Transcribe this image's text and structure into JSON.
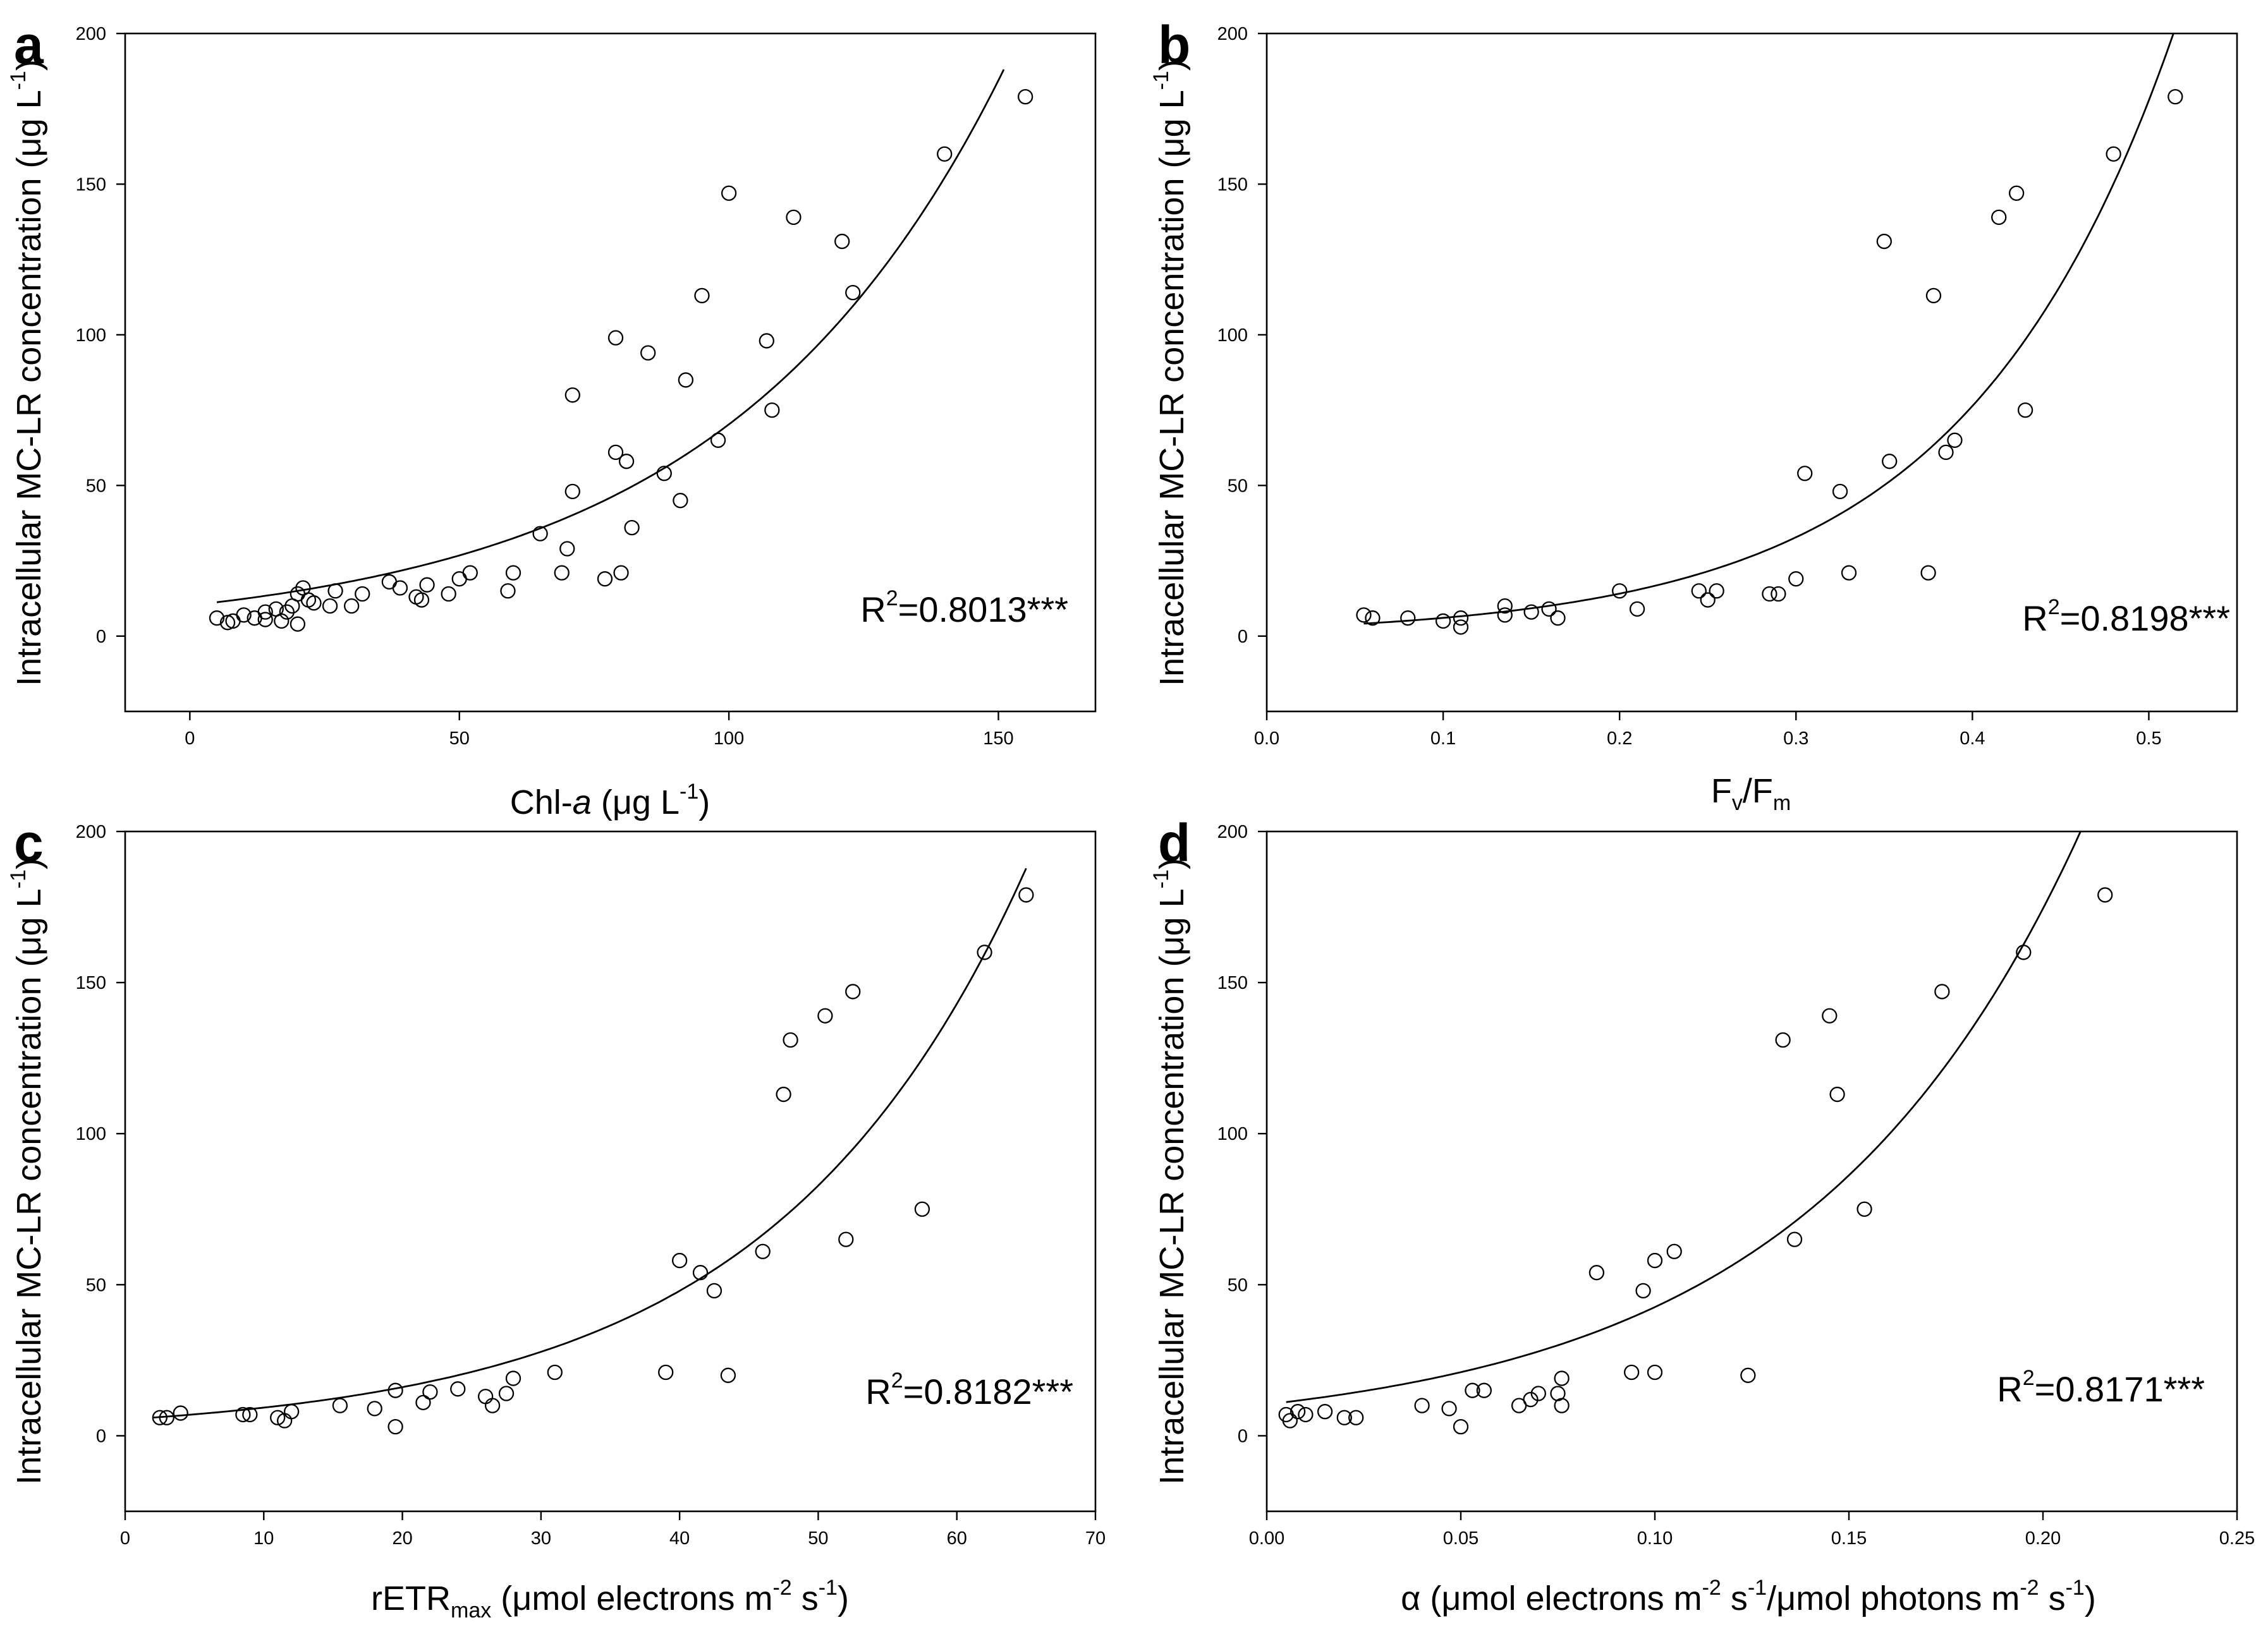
{
  "figure": {
    "ylabel": {
      "main": "Intracellular MC-LR concentration (μg L",
      "sup": "-1",
      "end": ")"
    }
  },
  "chart_data": [
    {
      "panel": "a",
      "type": "scatter",
      "xlabel": {
        "parts": [
          {
            "t": "Chl-",
            "s": "normal"
          },
          {
            "t": "a",
            "s": "italic"
          },
          {
            "t": " (μg L",
            "s": "normal"
          },
          {
            "t": "-1",
            "s": "sup"
          },
          {
            "t": ")",
            "s": "normal"
          }
        ]
      },
      "xlim": [
        -12,
        168
      ],
      "ylim": [
        -25,
        200
      ],
      "xticks": [
        0,
        50,
        100,
        150
      ],
      "xtick_labels": [
        "0",
        "50",
        "100",
        "150"
      ],
      "yticks": [
        0,
        50,
        100,
        150,
        200
      ],
      "ytick_labels": [
        "0",
        "50",
        "100",
        "150",
        "200"
      ],
      "r2_text": {
        "pre": "R",
        "sup": "2",
        "post": "=0.8013***"
      },
      "fit": {
        "model": "exponential",
        "a": 10.2,
        "b": 0.0193,
        "x_range": [
          5,
          151
        ]
      },
      "points": [
        [
          5,
          6
        ],
        [
          7,
          4.5
        ],
        [
          8,
          5
        ],
        [
          10,
          7
        ],
        [
          12,
          6
        ],
        [
          14,
          8
        ],
        [
          14,
          5.5
        ],
        [
          16,
          9
        ],
        [
          17,
          5
        ],
        [
          18,
          8
        ],
        [
          19,
          10
        ],
        [
          20,
          4
        ],
        [
          20,
          14
        ],
        [
          21,
          16
        ],
        [
          22,
          12
        ],
        [
          23,
          11
        ],
        [
          26,
          10
        ],
        [
          27,
          15
        ],
        [
          30,
          10
        ],
        [
          32,
          14
        ],
        [
          37,
          18
        ],
        [
          39,
          16
        ],
        [
          42,
          13
        ],
        [
          43,
          12
        ],
        [
          44,
          17
        ],
        [
          48,
          14
        ],
        [
          50,
          19
        ],
        [
          52,
          21
        ],
        [
          59,
          15
        ],
        [
          60,
          21
        ],
        [
          65,
          34
        ],
        [
          69,
          21
        ],
        [
          70,
          29
        ],
        [
          71,
          48
        ],
        [
          71,
          80
        ],
        [
          77,
          19
        ],
        [
          79,
          99
        ],
        [
          79,
          61
        ],
        [
          80,
          21
        ],
        [
          81,
          58
        ],
        [
          82,
          36
        ],
        [
          85,
          94
        ],
        [
          88,
          54
        ],
        [
          91,
          45
        ],
        [
          92,
          85
        ],
        [
          95,
          113
        ],
        [
          98,
          65
        ],
        [
          100,
          147
        ],
        [
          107,
          98
        ],
        [
          108,
          75
        ],
        [
          112,
          139
        ],
        [
          121,
          131
        ],
        [
          123,
          114
        ],
        [
          140,
          160
        ],
        [
          155,
          179
        ]
      ]
    },
    {
      "panel": "b",
      "type": "scatter",
      "xlabel": {
        "parts": [
          {
            "t": "F",
            "s": "normal"
          },
          {
            "t": "v",
            "s": "sub"
          },
          {
            "t": "/F",
            "s": "normal"
          },
          {
            "t": "m",
            "s": "sub"
          }
        ]
      },
      "xlim": [
        0.0,
        0.55
      ],
      "ylim": [
        -25,
        200
      ],
      "xticks": [
        0.0,
        0.1,
        0.2,
        0.3,
        0.4,
        0.5
      ],
      "xtick_labels": [
        "0.0",
        "0.1",
        "0.2",
        "0.3",
        "0.4",
        "0.5"
      ],
      "yticks": [
        0,
        50,
        100,
        150,
        200
      ],
      "ytick_labels": [
        "0",
        "50",
        "100",
        "150",
        "200"
      ],
      "r2_text": {
        "pre": "R",
        "sup": "2",
        "post": "=0.8198***"
      },
      "fit": {
        "model": "exponential",
        "a": 2.6,
        "b": 8.45,
        "x_range": [
          0.055,
          0.515
        ]
      },
      "points": [
        [
          0.055,
          7
        ],
        [
          0.06,
          6
        ],
        [
          0.08,
          6
        ],
        [
          0.1,
          5
        ],
        [
          0.11,
          3
        ],
        [
          0.11,
          6
        ],
        [
          0.135,
          10
        ],
        [
          0.135,
          7
        ],
        [
          0.15,
          8
        ],
        [
          0.16,
          9
        ],
        [
          0.165,
          6
        ],
        [
          0.2,
          15
        ],
        [
          0.21,
          9
        ],
        [
          0.245,
          15
        ],
        [
          0.25,
          12
        ],
        [
          0.255,
          15
        ],
        [
          0.285,
          14
        ],
        [
          0.29,
          14
        ],
        [
          0.3,
          19
        ],
        [
          0.305,
          54
        ],
        [
          0.325,
          48
        ],
        [
          0.33,
          21
        ],
        [
          0.35,
          131
        ],
        [
          0.353,
          58
        ],
        [
          0.375,
          21
        ],
        [
          0.378,
          113
        ],
        [
          0.385,
          61
        ],
        [
          0.39,
          65
        ],
        [
          0.415,
          139
        ],
        [
          0.425,
          147
        ],
        [
          0.43,
          75
        ],
        [
          0.48,
          160
        ],
        [
          0.515,
          179
        ]
      ]
    },
    {
      "panel": "c",
      "type": "scatter",
      "xlabel": {
        "parts": [
          {
            "t": "rETR",
            "s": "normal"
          },
          {
            "t": "max",
            "s": "sub"
          },
          {
            "t": " (μmol electrons m",
            "s": "normal"
          },
          {
            "t": "-2",
            "s": "sup"
          },
          {
            "t": " s",
            "s": "normal"
          },
          {
            "t": "-1",
            "s": "sup"
          },
          {
            "t": ")",
            "s": "normal"
          }
        ]
      },
      "xlim": [
        0,
        70
      ],
      "ylim": [
        -25,
        200
      ],
      "xticks": [
        0,
        10,
        20,
        30,
        40,
        50,
        60,
        70
      ],
      "xtick_labels": [
        "0",
        "10",
        "20",
        "30",
        "40",
        "50",
        "60",
        "70"
      ],
      "yticks": [
        0,
        50,
        100,
        150,
        200
      ],
      "ytick_labels": [
        "0",
        "50",
        "100",
        "150",
        "200"
      ],
      "r2_text": {
        "pre": "R",
        "sup": "2",
        "post": "=0.8182***"
      },
      "fit": {
        "model": "exponential",
        "a": 5.4,
        "b": 0.0546,
        "x_range": [
          2,
          65
        ]
      },
      "points": [
        [
          2.5,
          6
        ],
        [
          3,
          6
        ],
        [
          4,
          7.5
        ],
        [
          8.5,
          7
        ],
        [
          9,
          7
        ],
        [
          11,
          6
        ],
        [
          11.5,
          5
        ],
        [
          12,
          8
        ],
        [
          15.5,
          10
        ],
        [
          18,
          9
        ],
        [
          19.5,
          15
        ],
        [
          19.5,
          3
        ],
        [
          21.5,
          11
        ],
        [
          22,
          14.5
        ],
        [
          24,
          15.5
        ],
        [
          26,
          13
        ],
        [
          26.5,
          10
        ],
        [
          27.5,
          14
        ],
        [
          28,
          19
        ],
        [
          31,
          21
        ],
        [
          39,
          21
        ],
        [
          40,
          58
        ],
        [
          41.5,
          54
        ],
        [
          42.5,
          48
        ],
        [
          43.5,
          20
        ],
        [
          46,
          61
        ],
        [
          47.5,
          113
        ],
        [
          48,
          131
        ],
        [
          50.5,
          139
        ],
        [
          52,
          65
        ],
        [
          52.5,
          147
        ],
        [
          57.5,
          75
        ],
        [
          62,
          160
        ],
        [
          65,
          179
        ]
      ]
    },
    {
      "panel": "d",
      "type": "scatter",
      "xlabel": {
        "parts": [
          {
            "t": "α (μmol electrons m",
            "s": "normal"
          },
          {
            "t": "-2",
            "s": "sup"
          },
          {
            "t": " s",
            "s": "normal"
          },
          {
            "t": "-1",
            "s": "sup"
          },
          {
            "t": "/μmol photons m",
            "s": "normal"
          },
          {
            "t": "-2",
            "s": "sup"
          },
          {
            "t": " s",
            "s": "normal"
          },
          {
            "t": "-1",
            "s": "sup"
          },
          {
            "t": ")",
            "s": "normal"
          }
        ]
      },
      "xlim": [
        0.0,
        0.25
      ],
      "ylim": [
        -25,
        200
      ],
      "xticks": [
        0.0,
        0.05,
        0.1,
        0.15,
        0.2,
        0.25
      ],
      "xtick_labels": [
        "0.00",
        "0.05",
        "0.10",
        "0.15",
        "0.20",
        "0.25"
      ],
      "yticks": [
        0,
        50,
        100,
        150,
        200
      ],
      "ytick_labels": [
        "0",
        "50",
        "100",
        "150",
        "200"
      ],
      "r2_text": {
        "pre": "R",
        "sup": "2",
        "post": "=0.8171***"
      },
      "fit": {
        "model": "exponential",
        "a": 10.4,
        "b": 14.1,
        "x_range": [
          0.005,
          0.212
        ]
      },
      "points": [
        [
          0.005,
          7
        ],
        [
          0.006,
          5
        ],
        [
          0.008,
          8
        ],
        [
          0.01,
          7
        ],
        [
          0.015,
          8
        ],
        [
          0.02,
          6
        ],
        [
          0.023,
          6
        ],
        [
          0.04,
          10
        ],
        [
          0.047,
          9
        ],
        [
          0.05,
          3
        ],
        [
          0.053,
          15
        ],
        [
          0.056,
          15
        ],
        [
          0.065,
          10
        ],
        [
          0.068,
          12
        ],
        [
          0.07,
          14
        ],
        [
          0.075,
          14
        ],
        [
          0.076,
          10
        ],
        [
          0.076,
          19
        ],
        [
          0.085,
          54
        ],
        [
          0.094,
          21
        ],
        [
          0.097,
          48
        ],
        [
          0.1,
          21
        ],
        [
          0.1,
          58
        ],
        [
          0.105,
          61
        ],
        [
          0.124,
          20
        ],
        [
          0.133,
          131
        ],
        [
          0.136,
          65
        ],
        [
          0.145,
          139
        ],
        [
          0.147,
          113
        ],
        [
          0.154,
          75
        ],
        [
          0.174,
          147
        ],
        [
          0.195,
          160
        ],
        [
          0.216,
          179
        ]
      ]
    }
  ]
}
